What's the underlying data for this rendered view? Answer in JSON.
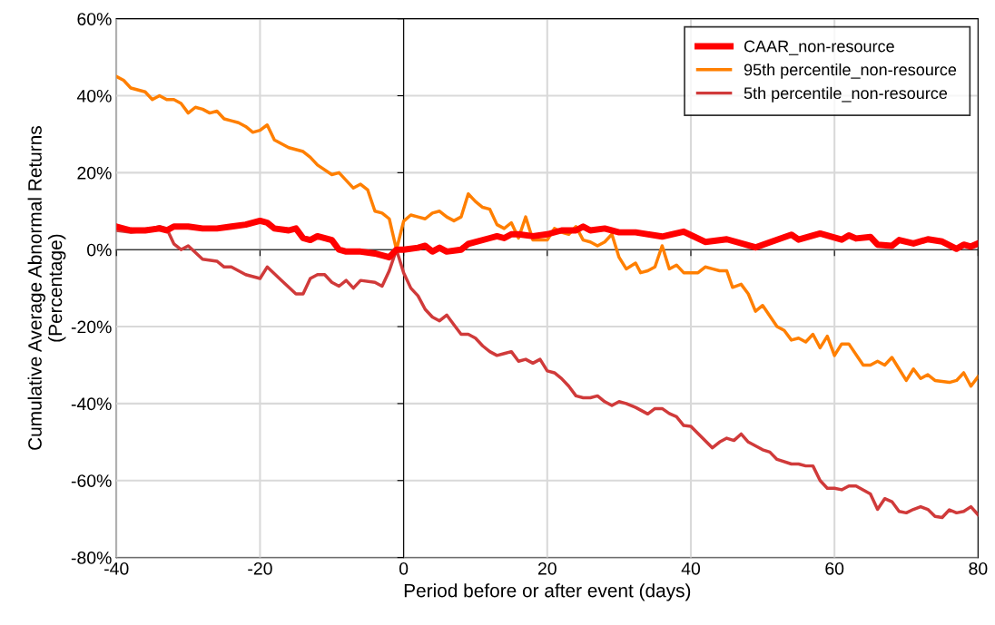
{
  "chart_data": {
    "type": "line",
    "xlabel": "Period before or after event (days)",
    "ylabel": "Cumulative Average Abnormal Returns\n(Percentage)",
    "xlim": [
      -40,
      80
    ],
    "xticks": [
      -40,
      -20,
      0,
      20,
      40,
      60,
      80
    ],
    "ylim": [
      -80,
      60
    ],
    "yticks": [
      {
        "value": -80,
        "label": "-80%"
      },
      {
        "value": -60,
        "label": "-60%"
      },
      {
        "value": -40,
        "label": "-40%"
      },
      {
        "value": -20,
        "label": "-20%"
      },
      {
        "value": 0,
        "label": "0%"
      },
      {
        "value": 20,
        "label": "20%"
      },
      {
        "value": 40,
        "label": "40%"
      },
      {
        "value": 60,
        "label": "60%"
      }
    ],
    "grid": true,
    "legend": "top right",
    "marker": "none",
    "series": [
      {
        "name": "CAAR_non-resource",
        "color": "#ff0000",
        "x": [
          -40,
          -38,
          -36,
          -34,
          -33,
          -32,
          -30,
          -28,
          -26,
          -24,
          -22,
          -20,
          -19,
          -18,
          -16,
          -15,
          -14,
          -13,
          -12,
          -10,
          -9,
          -8,
          -6,
          -4,
          -2,
          -1,
          0,
          2,
          3,
          4,
          5,
          6,
          8,
          9,
          12,
          13,
          14,
          15,
          16,
          18,
          20,
          22,
          24,
          25,
          26,
          28,
          30,
          32.3,
          36,
          39,
          42,
          45,
          49,
          50.5,
          54,
          55,
          58,
          61,
          62,
          63,
          65,
          66,
          68,
          69,
          71,
          73,
          75,
          77,
          78,
          79,
          80
        ],
        "values": [
          6,
          5,
          5,
          5.5,
          5,
          6,
          6,
          5.5,
          5.5,
          6,
          6.5,
          7.5,
          7,
          5.5,
          5,
          5.5,
          3,
          2.5,
          3.5,
          2.5,
          0,
          -0.5,
          -0.5,
          -1,
          -2,
          0,
          0,
          0.5,
          1,
          -0.5,
          0.5,
          -0.5,
          0,
          1.5,
          3,
          3.5,
          3,
          4,
          4,
          3.5,
          4,
          5,
          5,
          6,
          5,
          5.5,
          4.5,
          4.5,
          3.4,
          4.7,
          2,
          2.7,
          0.6,
          1.6,
          3.9,
          2.6,
          4.2,
          2.6,
          3.7,
          2.9,
          3.3,
          1.3,
          1,
          2.5,
          1.6,
          2.7,
          2.1,
          0.2,
          1.3,
          0.8,
          1.6
        ]
      },
      {
        "name": "95th percentile_non-resource",
        "color": "#ff7f00",
        "x": [
          -40,
          -39,
          -38,
          -36,
          -35,
          -34,
          -33,
          -32,
          -31,
          -30,
          -29,
          -28,
          -27,
          -26,
          -25,
          -24,
          -23,
          -22,
          -21,
          -20,
          -19,
          -18,
          -16,
          -14,
          -13,
          -12,
          -10,
          -9,
          -8,
          -7,
          -6,
          -5,
          -4,
          -3,
          -2,
          -1,
          0,
          1,
          2,
          3,
          4,
          5,
          6,
          7,
          8,
          9,
          10,
          11,
          12,
          13,
          14,
          15,
          16,
          17,
          18,
          19,
          20,
          21,
          22,
          23,
          24,
          25,
          26,
          27,
          28,
          29,
          30,
          31,
          32.3,
          33,
          34,
          35,
          36,
          37,
          38,
          39,
          41,
          42,
          43,
          44,
          45,
          45.8,
          47,
          48,
          49,
          50,
          52,
          53,
          54,
          55,
          56,
          57,
          58,
          59,
          60,
          61,
          62,
          64,
          65,
          66,
          67,
          68,
          69,
          70,
          71,
          72,
          73,
          74,
          76,
          77,
          78,
          79,
          80
        ],
        "values": [
          45,
          44,
          42,
          41,
          39,
          40,
          39,
          39,
          38,
          35.5,
          37,
          36.5,
          35.5,
          36,
          34,
          33.5,
          33,
          32,
          30.5,
          31,
          32.4,
          28.5,
          26.5,
          25.5,
          24,
          22,
          19.5,
          20,
          18,
          16,
          17,
          15.5,
          10,
          9.5,
          8,
          0,
          7.4,
          9,
          8.5,
          8,
          9.5,
          10,
          8.5,
          7.5,
          8.5,
          14.5,
          12.5,
          11,
          10.5,
          6.5,
          5.5,
          7,
          3,
          8.5,
          2.5,
          2.5,
          2.5,
          5.5,
          4.5,
          4,
          6,
          2.5,
          2,
          1,
          2,
          4,
          -2,
          -5,
          -3.5,
          -6,
          -5.5,
          -4.5,
          1,
          -5,
          -4,
          -6,
          -6,
          -4.5,
          -5,
          -5.5,
          -5.5,
          -9.8,
          -9,
          -11.5,
          -16,
          -14.5,
          -20,
          -21,
          -23.5,
          -23,
          -24,
          -22,
          -25.5,
          -22.5,
          -27.5,
          -24.5,
          -24.5,
          -30,
          -30,
          -29,
          -30,
          -28,
          -31,
          -34,
          -31,
          -33.5,
          -32.5,
          -34,
          -34.5,
          -34,
          -32,
          -35.5,
          -33
        ]
      },
      {
        "name": "5th percentile_non-resource",
        "color": "#d03a3a",
        "x": [
          -40,
          -38,
          -36,
          -34,
          -33,
          -32,
          -31,
          -30,
          -28,
          -26,
          -25,
          -24,
          -22,
          -20,
          -19,
          -17,
          -15,
          -14,
          -13,
          -12,
          -11,
          -10,
          -9,
          -8,
          -7,
          -6,
          -4,
          -3,
          -2,
          -1,
          0,
          1,
          2,
          3,
          4,
          5,
          6,
          7,
          8,
          9,
          10,
          11,
          12,
          13,
          14,
          15,
          16,
          17,
          18,
          19,
          20,
          21,
          22,
          23,
          24,
          25,
          26,
          27,
          28,
          29,
          30,
          31,
          32.3,
          34,
          35,
          36,
          37,
          38,
          39,
          40,
          43,
          44,
          45,
          46,
          47,
          48,
          50,
          51,
          52,
          54,
          55,
          56,
          57,
          58,
          59,
          60,
          61,
          62,
          63,
          65,
          66,
          67,
          68,
          69,
          70,
          71,
          72,
          73,
          74,
          75,
          76,
          77,
          78,
          79,
          80
        ],
        "values": [
          5,
          4.5,
          5,
          6,
          5.5,
          1.5,
          0,
          1,
          -2.5,
          -3,
          -4.5,
          -4.5,
          -6.5,
          -7.5,
          -4.5,
          -8,
          -11.5,
          -11.5,
          -7.5,
          -6.5,
          -6.5,
          -8.5,
          -9.5,
          -8,
          -10,
          -8,
          -8.5,
          -9.5,
          -5.5,
          0,
          -6,
          -10,
          -12,
          -15.5,
          -17.5,
          -18.5,
          -17,
          -19.5,
          -22,
          -22,
          -23,
          -25,
          -26.5,
          -27.5,
          -27,
          -26.5,
          -29,
          -28.5,
          -29.5,
          -28.5,
          -31.5,
          -32,
          -33.5,
          -35.5,
          -38,
          -38.5,
          -38.5,
          -38,
          -39.5,
          -40.5,
          -39.5,
          -40,
          -41,
          -42.7,
          -41.3,
          -41.3,
          -42.6,
          -43.4,
          -45.7,
          -45.9,
          -51.5,
          -50,
          -49,
          -49.6,
          -47.9,
          -50,
          -52,
          -52.6,
          -54.5,
          -55.7,
          -55.7,
          -56.2,
          -56.2,
          -60,
          -62,
          -62,
          -62.4,
          -61.4,
          -61.4,
          -63.5,
          -67.5,
          -64.7,
          -65.5,
          -68,
          -68.4,
          -67.5,
          -66.8,
          -67.5,
          -69.3,
          -69.6,
          -67.6,
          -68.4,
          -68,
          -66.8,
          -68.9
        ]
      }
    ]
  }
}
